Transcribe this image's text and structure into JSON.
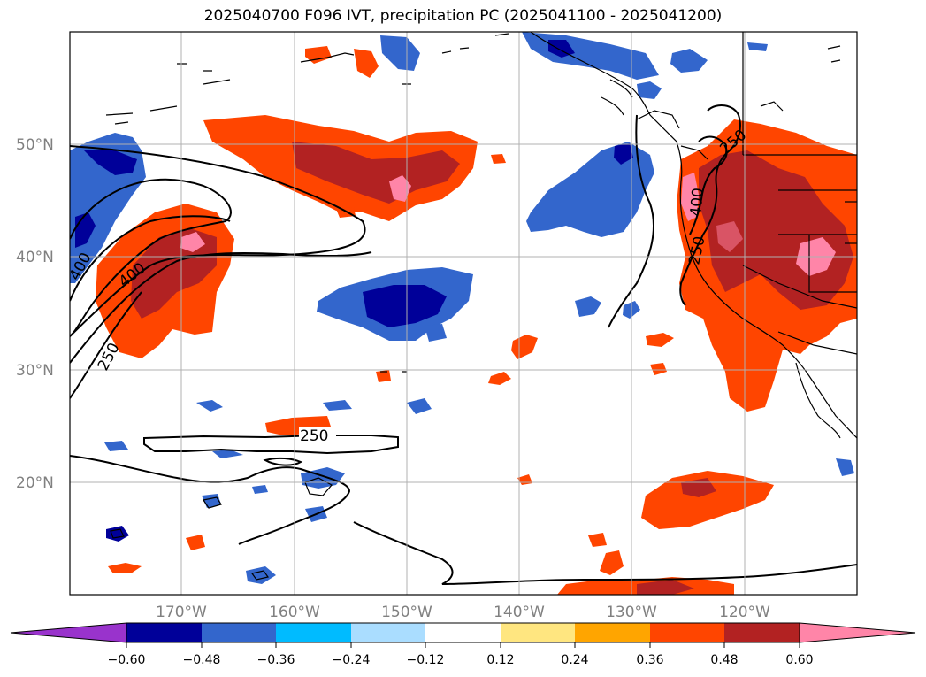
{
  "title": "2025040700 F096 IVT, precipitation PC (2025041100 - 2025041200)",
  "axes": {
    "lat_labels": [
      "50°N",
      "40°N",
      "30°N",
      "20°N"
    ],
    "lon_labels": [
      "170°W",
      "160°W",
      "150°W",
      "140°W",
      "130°W",
      "120°W"
    ]
  },
  "contour_labels": [
    "250",
    "400",
    "250",
    "400",
    "250",
    "250",
    "400",
    "250"
  ],
  "colorbar": {
    "ticks": [
      "−0.60",
      "−0.48",
      "−0.36",
      "−0.24",
      "−0.12",
      "0.12",
      "0.24",
      "0.36",
      "0.48",
      "0.60"
    ],
    "colors": [
      "#9933cc",
      "#000099",
      "#3366cc",
      "#00bbff",
      "#aaddff",
      "#ffffff",
      "#ffe680",
      "#ffa500",
      "#ff4500",
      "#b22222",
      "#ff85a8"
    ]
  },
  "palette": {
    "pos_light": "#ffe680",
    "pos_orange": "#ffa500",
    "pos_red": "#ff4500",
    "pos_dark": "#b22222",
    "pos_pink": "#ff85a8",
    "neg_light": "#aaddff",
    "neg_cyan": "#00bbff",
    "neg_blue": "#3366cc",
    "neg_navy": "#000099"
  }
}
